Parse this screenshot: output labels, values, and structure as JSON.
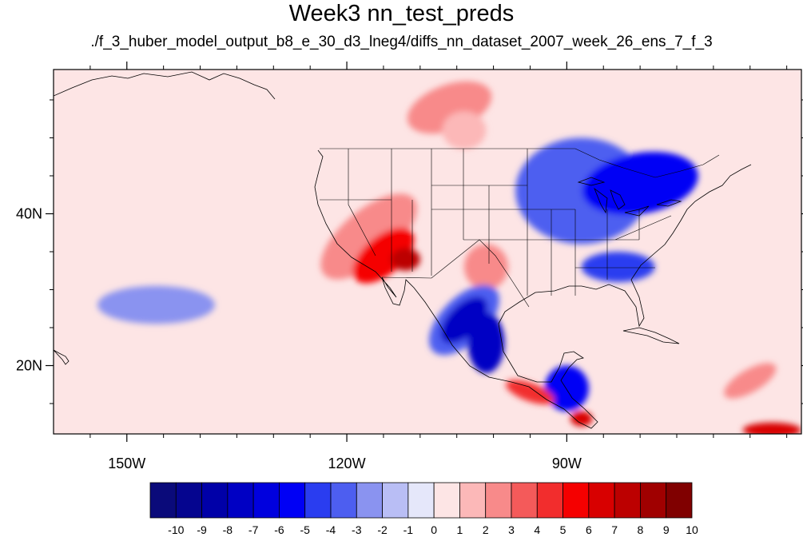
{
  "title": "Week3 nn_test_preds",
  "subtitle": "./f_3_huber_model_output_b8_e_30_d3_lneg4/diffs_nn_dataset_2007_week_26_ens_7_f_3",
  "map": {
    "lon_range": [
      -160,
      -58
    ],
    "lat_range": [
      11,
      59
    ],
    "x_ticks": [
      {
        "value": -150,
        "label": "150W"
      },
      {
        "value": -120,
        "label": "120W"
      },
      {
        "value": -90,
        "label": "90W"
      }
    ],
    "y_ticks": [
      {
        "value": 40,
        "label": "40N"
      },
      {
        "value": 20,
        "label": "20N"
      }
    ],
    "background_color": "#fde5e5"
  },
  "colorbar": {
    "labels": [
      "-10",
      "-9",
      "-8",
      "-7",
      "-6",
      "-5",
      "-4",
      "-3",
      "-2",
      "-1",
      "0",
      "1",
      "2",
      "3",
      "4",
      "5",
      "6",
      "7",
      "8",
      "9",
      "10"
    ],
    "colors": [
      "#0a0a7a",
      "#05058f",
      "#0000a8",
      "#0000c4",
      "#0000de",
      "#0000f5",
      "#2a3df0",
      "#4d5ef0",
      "#8a93f0",
      "#b9bef5",
      "#e5e7fa",
      "#fde5e5",
      "#fcb8b8",
      "#f88a8a",
      "#f45a5a",
      "#f22d2d",
      "#f50000",
      "#d80000",
      "#bc0000",
      "#a00000",
      "#800000"
    ]
  },
  "field_blobs": [
    {
      "lon": -106,
      "lat": 54,
      "rx": 6,
      "ry": 3,
      "rot": -20,
      "value": 3
    },
    {
      "lon": -104,
      "lat": 51,
      "rx": 3,
      "ry": 2.5,
      "rot": 0,
      "value": 2
    },
    {
      "lon": -117,
      "lat": 37,
      "rx": 8,
      "ry": 3.5,
      "rot": -40,
      "value": 3
    },
    {
      "lon": -115,
      "lat": 34.5,
      "rx": 5,
      "ry": 2.5,
      "rot": -40,
      "value": 6
    },
    {
      "lon": -112,
      "lat": 34,
      "rx": 2,
      "ry": 1.5,
      "rot": 0,
      "value": 8
    },
    {
      "lon": -101,
      "lat": 33,
      "rx": 3,
      "ry": 3,
      "rot": 0,
      "value": 3
    },
    {
      "lon": -104,
      "lat": 26,
      "rx": 6,
      "ry": 3,
      "rot": -45,
      "value": -3
    },
    {
      "lon": -104,
      "lat": 26,
      "rx": 4,
      "ry": 2,
      "rot": -45,
      "value": -7
    },
    {
      "lon": -101,
      "lat": 23,
      "rx": 2.5,
      "ry": 4,
      "rot": 0,
      "value": -7
    },
    {
      "lon": -88,
      "lat": 43,
      "rx": 9,
      "ry": 7,
      "rot": 0,
      "value": -3
    },
    {
      "lon": -80,
      "lat": 44,
      "rx": 8,
      "ry": 4,
      "rot": -10,
      "value": -5
    },
    {
      "lon": -83,
      "lat": 33,
      "rx": 5,
      "ry": 2,
      "rot": 0,
      "value": -4
    },
    {
      "lon": -90,
      "lat": 17,
      "rx": 3,
      "ry": 3,
      "rot": 0,
      "value": -5
    },
    {
      "lon": -95,
      "lat": 16.5,
      "rx": 3.5,
      "ry": 1.2,
      "rot": 20,
      "value": 5
    },
    {
      "lon": -88,
      "lat": 13,
      "rx": 1.5,
      "ry": 1,
      "rot": 0,
      "value": 7
    },
    {
      "lon": -146,
      "lat": 28,
      "rx": 8,
      "ry": 2.5,
      "rot": 0,
      "value": -2
    },
    {
      "lon": -65,
      "lat": 18,
      "rx": 4,
      "ry": 1.5,
      "rot": -30,
      "value": 3
    },
    {
      "lon": -62,
      "lat": 11.5,
      "rx": 4,
      "ry": 1,
      "rot": 0,
      "value": 7
    }
  ]
}
